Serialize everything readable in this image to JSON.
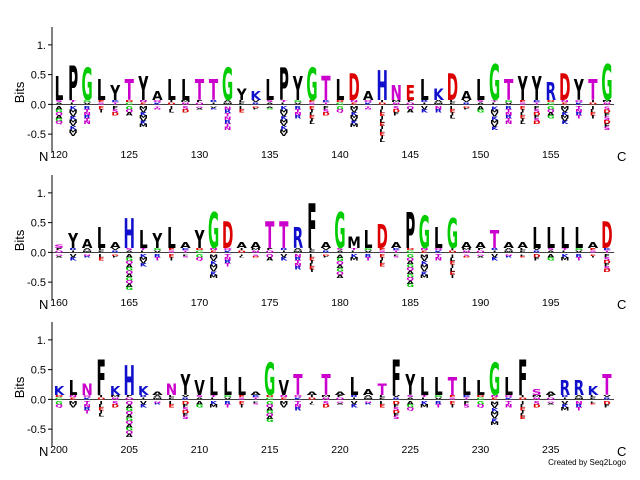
{
  "chart_data": {
    "type": "sequence-logo",
    "ylabel": "Bits",
    "ylim": [
      -0.8,
      1.3
    ],
    "yticks": [
      -0.5,
      0.0,
      0.5,
      1.0
    ],
    "ytick_labels": [
      "-0.5",
      "0.0",
      "0.5",
      "1."
    ],
    "n_terminus_label": "N",
    "c_terminus_label": "C",
    "colors": {
      "hydrophobic": "#000000",
      "glycine": "#00cc00",
      "basic": "#1010cc",
      "acidic": "#dd0000",
      "polar": "#cc00cc",
      "special": "#00aaaa"
    },
    "panels": [
      {
        "start": 120,
        "tick_labels": [
          "120",
          "125",
          "130",
          "135",
          "140",
          "145",
          "150",
          "155"
        ],
        "positions": [
          {
            "pos": 120,
            "letter": "L",
            "bits": 0.4,
            "neg": 0.3
          },
          {
            "pos": 121,
            "letter": "P",
            "bits": 0.58,
            "neg": 0.5
          },
          {
            "pos": 122,
            "letter": "G",
            "bits": 0.55,
            "neg": 0.3
          },
          {
            "pos": 123,
            "letter": "L",
            "bits": 0.35,
            "neg": 0.1
          },
          {
            "pos": 124,
            "letter": "Y",
            "bits": 0.25,
            "neg": 0.15
          },
          {
            "pos": 125,
            "letter": "T",
            "bits": 0.35,
            "neg": 0.15
          },
          {
            "pos": 126,
            "letter": "Y",
            "bits": 0.4,
            "neg": 0.35
          },
          {
            "pos": 127,
            "letter": "A",
            "bits": 0.15,
            "neg": 0.05
          },
          {
            "pos": 128,
            "letter": "L",
            "bits": 0.35,
            "neg": 0.1
          },
          {
            "pos": 129,
            "letter": "L",
            "bits": 0.35,
            "neg": 0.1
          },
          {
            "pos": 130,
            "letter": "T",
            "bits": 0.35,
            "neg": 0.05
          },
          {
            "pos": 131,
            "letter": "T",
            "bits": 0.35,
            "neg": 0.05
          },
          {
            "pos": 132,
            "letter": "G",
            "bits": 0.55,
            "neg": 0.4
          },
          {
            "pos": 133,
            "letter": "Y",
            "bits": 0.2,
            "neg": 0.1
          },
          {
            "pos": 134,
            "letter": "K",
            "bits": 0.15,
            "neg": 0.05
          },
          {
            "pos": 135,
            "letter": "L",
            "bits": 0.35,
            "neg": 0.05
          },
          {
            "pos": 136,
            "letter": "P",
            "bits": 0.55,
            "neg": 0.5
          },
          {
            "pos": 137,
            "letter": "Y",
            "bits": 0.4,
            "neg": 0.2
          },
          {
            "pos": 138,
            "letter": "G",
            "bits": 0.55,
            "neg": 0.3
          },
          {
            "pos": 139,
            "letter": "T",
            "bits": 0.4,
            "neg": 0.15
          },
          {
            "pos": 140,
            "letter": "L",
            "bits": 0.35,
            "neg": 0.1
          },
          {
            "pos": 141,
            "letter": "D",
            "bits": 0.45,
            "neg": 0.35
          },
          {
            "pos": 142,
            "letter": "A",
            "bits": 0.15,
            "neg": 0.05
          },
          {
            "pos": 143,
            "letter": "H",
            "bits": 0.5,
            "neg": 0.6
          },
          {
            "pos": 144,
            "letter": "N",
            "bits": 0.25,
            "neg": 0.15
          },
          {
            "pos": 145,
            "letter": "E",
            "bits": 0.25,
            "neg": 0.1
          },
          {
            "pos": 146,
            "letter": "L",
            "bits": 0.35,
            "neg": 0.1
          },
          {
            "pos": 147,
            "letter": "K",
            "bits": 0.2,
            "neg": 0.1
          },
          {
            "pos": 148,
            "letter": "D",
            "bits": 0.45,
            "neg": 0.2
          },
          {
            "pos": 149,
            "letter": "A",
            "bits": 0.15,
            "neg": 0.05
          },
          {
            "pos": 150,
            "letter": "L",
            "bits": 0.35,
            "neg": 0.1
          },
          {
            "pos": 151,
            "letter": "G",
            "bits": 0.6,
            "neg": 0.4
          },
          {
            "pos": 152,
            "letter": "T",
            "bits": 0.35,
            "neg": 0.3
          },
          {
            "pos": 153,
            "letter": "Y",
            "bits": 0.4,
            "neg": 0.3
          },
          {
            "pos": 154,
            "letter": "Y",
            "bits": 0.4,
            "neg": 0.3
          },
          {
            "pos": 155,
            "letter": "R",
            "bits": 0.3,
            "neg": 0.2
          },
          {
            "pos": 156,
            "letter": "D",
            "bits": 0.45,
            "neg": 0.3
          },
          {
            "pos": 157,
            "letter": "Y",
            "bits": 0.35,
            "neg": 0.2
          },
          {
            "pos": 158,
            "letter": "T",
            "bits": 0.35,
            "neg": 0.2
          },
          {
            "pos": 159,
            "letter": "G",
            "bits": 0.6,
            "neg": 0.4
          }
        ]
      },
      {
        "start": 160,
        "tick_labels": [
          "160",
          "165",
          "170",
          "175",
          "180",
          "185",
          "190",
          "195"
        ],
        "positions": [
          {
            "pos": 160,
            "letter": "S",
            "bits": 0.05,
            "neg": 0.05
          },
          {
            "pos": 161,
            "letter": "Y",
            "bits": 0.25,
            "neg": 0.1
          },
          {
            "pos": 162,
            "letter": "A",
            "bits": 0.15,
            "neg": 0.05
          },
          {
            "pos": 163,
            "letter": "L",
            "bits": 0.35,
            "neg": 0.1
          },
          {
            "pos": 164,
            "letter": "A",
            "bits": 0.1,
            "neg": 0.05
          },
          {
            "pos": 165,
            "letter": "H",
            "bits": 0.5,
            "neg": 0.6
          },
          {
            "pos": 166,
            "letter": "L",
            "bits": 0.3,
            "neg": 0.2
          },
          {
            "pos": 167,
            "letter": "Y",
            "bits": 0.25,
            "neg": 0.1
          },
          {
            "pos": 168,
            "letter": "L",
            "bits": 0.35,
            "neg": 0.1
          },
          {
            "pos": 169,
            "letter": "A",
            "bits": 0.1,
            "neg": 0.05
          },
          {
            "pos": 170,
            "letter": "Y",
            "bits": 0.3,
            "neg": 0.1
          },
          {
            "pos": 171,
            "letter": "G",
            "bits": 0.6,
            "neg": 0.4
          },
          {
            "pos": 172,
            "letter": "D",
            "bits": 0.45,
            "neg": 0.2
          },
          {
            "pos": 173,
            "letter": "A",
            "bits": 0.1,
            "neg": 0.05
          },
          {
            "pos": 174,
            "letter": "A",
            "bits": 0.1,
            "neg": 0.05
          },
          {
            "pos": 175,
            "letter": "T",
            "bits": 0.45,
            "neg": 0.1
          },
          {
            "pos": 176,
            "letter": "T",
            "bits": 0.45,
            "neg": 0.1
          },
          {
            "pos": 177,
            "letter": "R",
            "bits": 0.35,
            "neg": 0.25
          },
          {
            "pos": 178,
            "letter": "F",
            "bits": 0.75,
            "neg": 0.3
          },
          {
            "pos": 179,
            "letter": "A",
            "bits": 0.1,
            "neg": 0.05
          },
          {
            "pos": 180,
            "letter": "G",
            "bits": 0.6,
            "neg": 0.4
          },
          {
            "pos": 181,
            "letter": "M",
            "bits": 0.2,
            "neg": 0.1
          },
          {
            "pos": 182,
            "letter": "L",
            "bits": 0.3,
            "neg": 0.1
          },
          {
            "pos": 183,
            "letter": "D",
            "bits": 0.4,
            "neg": 0.2
          },
          {
            "pos": 184,
            "letter": "A",
            "bits": 0.1,
            "neg": 0.05
          },
          {
            "pos": 185,
            "letter": "P",
            "bits": 0.6,
            "neg": 0.55
          },
          {
            "pos": 186,
            "letter": "G",
            "bits": 0.55,
            "neg": 0.4
          },
          {
            "pos": 187,
            "letter": "L",
            "bits": 0.35,
            "neg": 0.1
          },
          {
            "pos": 188,
            "letter": "G",
            "bits": 0.5,
            "neg": 0.4
          },
          {
            "pos": 189,
            "letter": "A",
            "bits": 0.1,
            "neg": 0.05
          },
          {
            "pos": 190,
            "letter": "A",
            "bits": 0.1,
            "neg": 0.05
          },
          {
            "pos": 191,
            "letter": "T",
            "bits": 0.3,
            "neg": 0.1
          },
          {
            "pos": 192,
            "letter": "A",
            "bits": 0.1,
            "neg": 0.05
          },
          {
            "pos": 193,
            "letter": "A",
            "bits": 0.1,
            "neg": 0.05
          },
          {
            "pos": 194,
            "letter": "L",
            "bits": 0.35,
            "neg": 0.1
          },
          {
            "pos": 195,
            "letter": "L",
            "bits": 0.35,
            "neg": 0.1
          },
          {
            "pos": 196,
            "letter": "L",
            "bits": 0.35,
            "neg": 0.1
          },
          {
            "pos": 197,
            "letter": "L",
            "bits": 0.35,
            "neg": 0.1
          },
          {
            "pos": 198,
            "letter": "A",
            "bits": 0.1,
            "neg": 0.05
          },
          {
            "pos": 199,
            "letter": "D",
            "bits": 0.45,
            "neg": 0.3
          }
        ]
      },
      {
        "start": 200,
        "tick_labels": [
          "200",
          "205",
          "210",
          "215",
          "220",
          "225",
          "230",
          "235"
        ],
        "positions": [
          {
            "pos": 200,
            "letter": "K",
            "bits": 0.15,
            "neg": 0.1
          },
          {
            "pos": 201,
            "letter": "L",
            "bits": 0.25,
            "neg": 0.1
          },
          {
            "pos": 202,
            "letter": "N",
            "bits": 0.2,
            "neg": 0.2
          },
          {
            "pos": 203,
            "letter": "F",
            "bits": 0.6,
            "neg": 0.25
          },
          {
            "pos": 204,
            "letter": "K",
            "bits": 0.15,
            "neg": 0.1
          },
          {
            "pos": 205,
            "letter": "H",
            "bits": 0.5,
            "neg": 0.6
          },
          {
            "pos": 206,
            "letter": "K",
            "bits": 0.15,
            "neg": 0.1
          },
          {
            "pos": 207,
            "letter": "A",
            "bits": 0.05,
            "neg": 0.05
          },
          {
            "pos": 208,
            "letter": "N",
            "bits": 0.2,
            "neg": 0.1
          },
          {
            "pos": 209,
            "letter": "Y",
            "bits": 0.35,
            "neg": 0.3
          },
          {
            "pos": 210,
            "letter": "V",
            "bits": 0.25,
            "neg": 0.1
          },
          {
            "pos": 211,
            "letter": "L",
            "bits": 0.3,
            "neg": 0.1
          },
          {
            "pos": 212,
            "letter": "L",
            "bits": 0.3,
            "neg": 0.1
          },
          {
            "pos": 213,
            "letter": "L",
            "bits": 0.3,
            "neg": 0.1
          },
          {
            "pos": 214,
            "letter": "A",
            "bits": 0.05,
            "neg": 0.05
          },
          {
            "pos": 215,
            "letter": "G",
            "bits": 0.55,
            "neg": 0.35
          },
          {
            "pos": 216,
            "letter": "V",
            "bits": 0.25,
            "neg": 0.1
          },
          {
            "pos": 217,
            "letter": "T",
            "bits": 0.35,
            "neg": 0.15
          },
          {
            "pos": 218,
            "letter": "A",
            "bits": 0.05,
            "neg": 0.05
          },
          {
            "pos": 219,
            "letter": "T",
            "bits": 0.35,
            "neg": 0.1
          },
          {
            "pos": 220,
            "letter": "A",
            "bits": 0.05,
            "neg": 0.05
          },
          {
            "pos": 221,
            "letter": "L",
            "bits": 0.3,
            "neg": 0.1
          },
          {
            "pos": 222,
            "letter": "A",
            "bits": 0.1,
            "neg": 0.05
          },
          {
            "pos": 223,
            "letter": "T",
            "bits": 0.2,
            "neg": 0.1
          },
          {
            "pos": 224,
            "letter": "F",
            "bits": 0.6,
            "neg": 0.3
          },
          {
            "pos": 225,
            "letter": "Y",
            "bits": 0.35,
            "neg": 0.15
          },
          {
            "pos": 226,
            "letter": "L",
            "bits": 0.3,
            "neg": 0.1
          },
          {
            "pos": 227,
            "letter": "L",
            "bits": 0.3,
            "neg": 0.1
          },
          {
            "pos": 228,
            "letter": "T",
            "bits": 0.3,
            "neg": 0.1
          },
          {
            "pos": 229,
            "letter": "L",
            "bits": 0.3,
            "neg": 0.1
          },
          {
            "pos": 230,
            "letter": "L",
            "bits": 0.25,
            "neg": 0.1
          },
          {
            "pos": 231,
            "letter": "G",
            "bits": 0.55,
            "neg": 0.4
          },
          {
            "pos": 232,
            "letter": "L",
            "bits": 0.3,
            "neg": 0.1
          },
          {
            "pos": 233,
            "letter": "F",
            "bits": 0.6,
            "neg": 0.3
          },
          {
            "pos": 234,
            "letter": "S",
            "bits": 0.1,
            "neg": 0.1
          },
          {
            "pos": 235,
            "letter": "A",
            "bits": 0.05,
            "neg": 0.05
          },
          {
            "pos": 236,
            "letter": "R",
            "bits": 0.25,
            "neg": 0.15
          },
          {
            "pos": 237,
            "letter": "R",
            "bits": 0.25,
            "neg": 0.15
          },
          {
            "pos": 238,
            "letter": "K",
            "bits": 0.15,
            "neg": 0.05
          },
          {
            "pos": 239,
            "letter": "T",
            "bits": 0.35,
            "neg": 0.1
          }
        ]
      }
    ]
  },
  "footer": {
    "credit": "Created by Seq2Logo"
  }
}
